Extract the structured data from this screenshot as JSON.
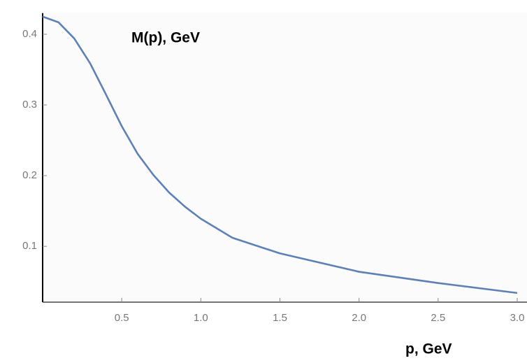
{
  "chart_data": {
    "type": "line",
    "y_label": "M(p), GeV",
    "x_label": "p, GeV",
    "x": [
      0,
      0.1,
      0.2,
      0.3,
      0.4,
      0.5,
      0.6,
      0.7,
      0.8,
      0.9,
      1.0,
      1.2,
      1.5,
      2.0,
      2.5,
      3.0
    ],
    "series": [
      {
        "color": "#5e81b5",
        "values": [
          0.425,
          0.417,
          0.394,
          0.359,
          0.315,
          0.27,
          0.231,
          0.201,
          0.176,
          0.156,
          0.139,
          0.112,
          0.09,
          0.064,
          0.048,
          0.034
        ]
      }
    ],
    "xlim": [
      0,
      3
    ],
    "ylim": [
      0.021,
      0.43
    ],
    "xticks": [
      0.5,
      {
        "value": 1,
        "label": "1.0"
      },
      1.5,
      {
        "value": 2,
        "label": "2.0"
      },
      2.5,
      {
        "value": 3,
        "label": "3.0"
      }
    ],
    "yticks": [
      0.1,
      0.2,
      0.3,
      0.4
    ]
  }
}
